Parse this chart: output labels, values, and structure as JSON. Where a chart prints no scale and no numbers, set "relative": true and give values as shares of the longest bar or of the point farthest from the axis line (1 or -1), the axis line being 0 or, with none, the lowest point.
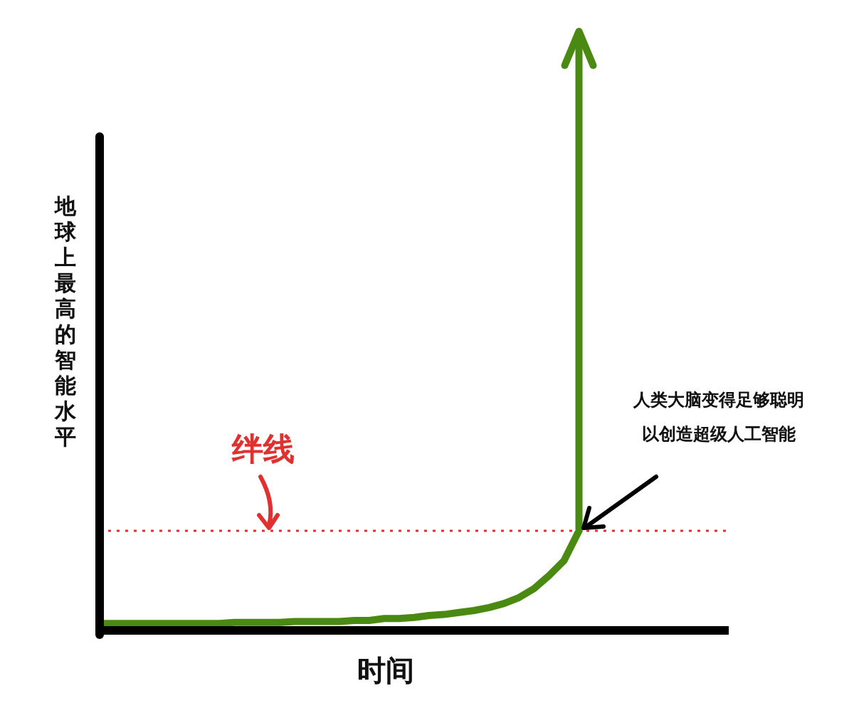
{
  "chart_data": {
    "type": "line",
    "relative": true,
    "xlabel": "时间",
    "ylabel": "地球上最高的智能水平",
    "categories": [
      null,
      null,
      null,
      null,
      null,
      null,
      null,
      null,
      null,
      null,
      null,
      null,
      null,
      null,
      null,
      null,
      null,
      null,
      null,
      null,
      null,
      null,
      null,
      null,
      null,
      null,
      null,
      null,
      null,
      null,
      null,
      null,
      null,
      null,
      null,
      null,
      null,
      null,
      null,
      null,
      null,
      null,
      null
    ],
    "series": [
      {
        "color": "#4a8a12",
        "values": [
          0.07,
          0.07,
          0.07,
          0.07,
          0.07,
          0.07,
          0.07,
          0.07,
          0.07,
          0.08,
          0.08,
          0.08,
          0.08,
          0.09,
          0.09,
          0.09,
          0.09,
          0.1,
          0.1,
          0.12,
          0.12,
          0.13,
          0.15,
          0.16,
          0.18,
          0.2,
          0.23,
          0.27,
          0.33,
          0.42,
          0.55,
          0.7,
          1,
          null,
          null,
          null,
          null,
          null,
          null,
          null,
          null,
          null,
          null
        ]
      }
    ],
    "ref_lines": [
      {
        "axis": "y",
        "value": 1,
        "label": "绊线",
        "color": "#e03030",
        "line_style": "dotted"
      }
    ],
    "annotations": [
      "人类大脑变得足够聪明以创造超级人工智能"
    ],
    "marker": "none",
    "line_style": "solid"
  }
}
